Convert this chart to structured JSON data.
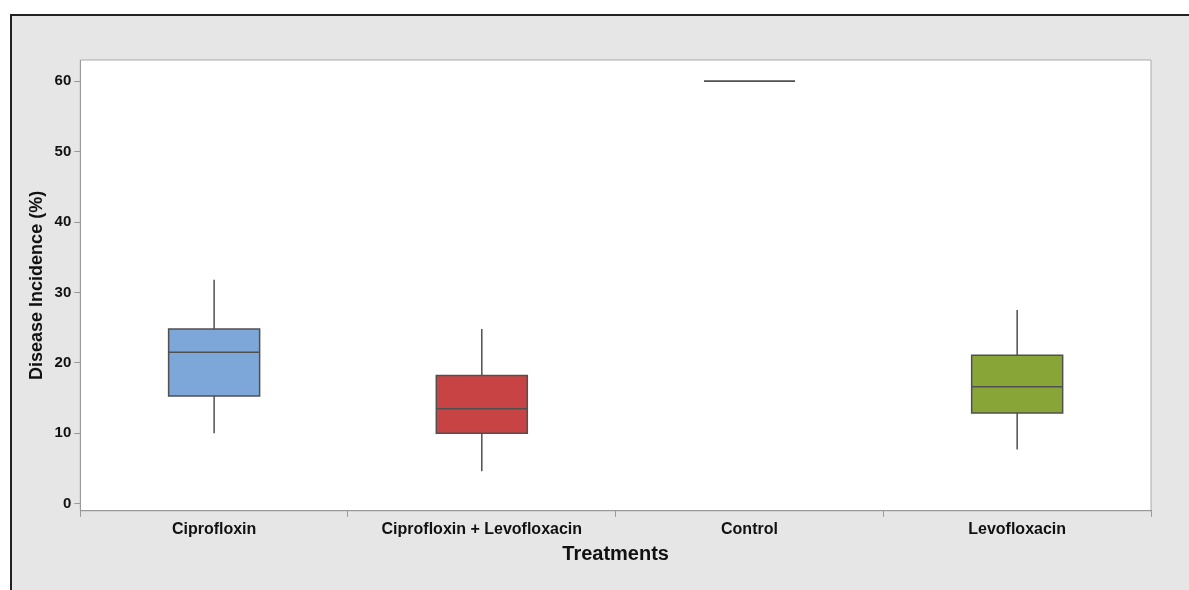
{
  "chart_data": {
    "type": "box",
    "xlabel": "Treatments",
    "ylabel": "Disease Incidence (%)",
    "categories": [
      "Ciprofloxin",
      "Ciprofloxin + Levofloxacin",
      "Control",
      "Levofloxacin"
    ],
    "boxes": [
      {
        "low": 10,
        "q1": 15.3,
        "median": 21.5,
        "q3": 24.8,
        "high": 31.8
      },
      {
        "low": 4.6,
        "q1": 10,
        "median": 13.5,
        "q3": 18.2,
        "high": 24.8
      },
      {
        "low": 60,
        "q1": 60,
        "median": 60,
        "q3": 60,
        "high": 60
      },
      {
        "low": 7.7,
        "q1": 12.9,
        "median": 16.6,
        "q3": 21.1,
        "high": 27.5
      }
    ],
    "colors": [
      "#7da7d9",
      "#c84444",
      "#5a5a5a",
      "#88a538"
    ],
    "ylim": [
      -1,
      63
    ],
    "yticks": [
      0,
      10,
      20,
      30,
      40,
      50,
      60
    ],
    "grid": false,
    "legend": false
  }
}
